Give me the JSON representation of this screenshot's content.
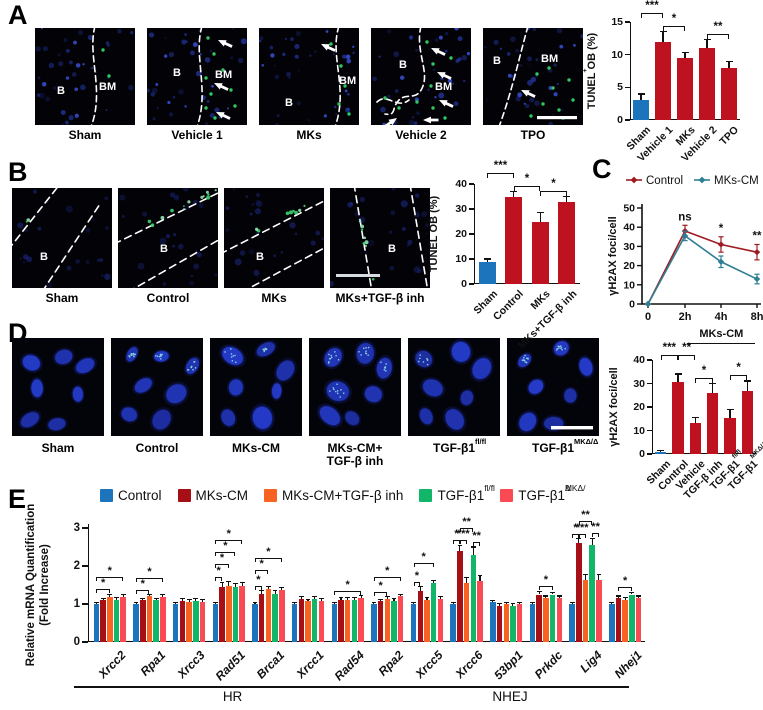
{
  "panels": {
    "A": {
      "letter": "A",
      "images": [
        {
          "label": "Sham",
          "bone_label": "B",
          "marrow_label": "BM"
        },
        {
          "label": "Vehicle 1",
          "bone_label": "B",
          "marrow_label": "BM"
        },
        {
          "label": "MKs",
          "bone_label": "B",
          "marrow_label": "BM"
        },
        {
          "label": "Vehicle 2",
          "bone_label": "B",
          "marrow_label": "BM"
        },
        {
          "label": "TPO",
          "bone_label": "B",
          "marrow_label": "BM"
        }
      ]
    },
    "B": {
      "letter": "B",
      "images": [
        {
          "label": "Sham",
          "bone_label": "B"
        },
        {
          "label": "Control",
          "bone_label": "B"
        },
        {
          "label": "MKs",
          "bone_label": "B"
        },
        {
          "label": "MKs+TGF-β inh",
          "bone_label": "B"
        }
      ]
    },
    "C": {
      "letter": "C"
    },
    "D": {
      "letter": "D",
      "images": [
        {
          "label": "Sham"
        },
        {
          "label": "Control"
        },
        {
          "label": "MKs-CM"
        },
        {
          "label": "MKs-CM+\nTGF-β inh"
        },
        {
          "label": "TGF-β1^{fl/fl}"
        },
        {
          "label": "TGF-β1^{MKΔ/Δ}"
        }
      ]
    },
    "E": {
      "letter": "E"
    }
  },
  "colors": {
    "blue": "#1C75BC",
    "bar_red": "#BE1220",
    "dark_red": "#A50F15",
    "orange": "#F96321",
    "green": "#12B668",
    "pink_red": "#FA4B55",
    "control_line": "#9E1B23",
    "mkscm_line": "#2E7F93"
  },
  "chart_data": [
    {
      "id": "A",
      "type": "bar",
      "ylabel": "TUNEL^{+} OB (%)",
      "ylim": [
        0,
        15
      ],
      "yticks": [
        0,
        5,
        10,
        15
      ],
      "categories": [
        "Sham",
        "Vehicle 1",
        "MKs",
        "Vehicle 2",
        "TPO"
      ],
      "values": [
        3,
        12,
        9.5,
        11,
        8
      ],
      "errors": [
        1,
        1.5,
        0.8,
        1.3,
        1
      ],
      "bar_colors": [
        "#1C75BC",
        "#BE1220",
        "#BE1220",
        "#BE1220",
        "#BE1220"
      ],
      "sig": [
        [
          "***",
          0,
          1,
          2
        ],
        [
          "*",
          1,
          2,
          1
        ],
        [
          "**",
          3,
          4,
          1
        ]
      ]
    },
    {
      "id": "B",
      "type": "bar",
      "ylabel": "TUNEL^{+} OB (%)",
      "ylim": [
        0,
        40
      ],
      "yticks": [
        0,
        10,
        20,
        30,
        40
      ],
      "categories": [
        "Sham",
        "Control",
        "MKs",
        "MKs+TGF-β inh"
      ],
      "values": [
        9,
        35,
        25,
        33
      ],
      "errors": [
        1,
        2,
        3.5,
        2
      ],
      "bar_colors": [
        "#1C75BC",
        "#BE1220",
        "#BE1220",
        "#BE1220"
      ],
      "sig": [
        [
          "***",
          0,
          1,
          2
        ],
        [
          "*",
          1,
          2,
          1
        ],
        [
          "*",
          2,
          3,
          1
        ]
      ]
    },
    {
      "id": "C",
      "type": "line",
      "ylabel": "γH2AX foci/cell",
      "ylim": [
        0,
        50
      ],
      "yticks": [
        0,
        10,
        20,
        30,
        40,
        50
      ],
      "x": [
        "0",
        "2h",
        "4h",
        "8h"
      ],
      "series": [
        {
          "name": "Control",
          "color": "#9E1B23",
          "values": [
            0,
            38,
            31,
            27
          ],
          "errors": [
            0,
            3,
            4,
            4
          ]
        },
        {
          "name": "MKs-CM",
          "color": "#2E7F93",
          "values": [
            0,
            35.5,
            22,
            13
          ],
          "errors": [
            0,
            2.5,
            3,
            2.5
          ]
        }
      ],
      "annotations": [
        {
          "x": 1,
          "label": "ns"
        },
        {
          "x": 2,
          "label": "*"
        },
        {
          "x": 3,
          "label": "**"
        }
      ],
      "legend_position": "top"
    },
    {
      "id": "D",
      "type": "bar",
      "ylabel": "γH2AX foci/cell",
      "ylim": [
        0,
        40
      ],
      "yticks": [
        0,
        10,
        20,
        30,
        40
      ],
      "categories": [
        "Sham",
        "Control",
        "Vehicle",
        "TGF-β inh",
        "TGF-β1^{fl/fl}",
        "TGF-β1^{MKΔ/Δ}"
      ],
      "values": [
        1,
        30.5,
        13,
        26,
        15.5,
        27
      ],
      "errors": [
        0.4,
        3.5,
        2.5,
        4,
        3.5,
        4
      ],
      "bar_colors": [
        "#1C75BC",
        "#BE1220",
        "#BE1220",
        "#BE1220",
        "#BE1220",
        "#BE1220"
      ],
      "header": {
        "label": "MKs-CM",
        "from": 2,
        "to": 5
      },
      "sig": [
        [
          "***",
          0,
          1,
          2
        ],
        [
          "**",
          1,
          2,
          2
        ],
        [
          "*",
          2,
          3,
          1
        ],
        [
          "*",
          4,
          5,
          1
        ]
      ]
    },
    {
      "id": "E",
      "type": "grouped-bar",
      "ylabel": "Relative mRNA Quantification\n(Fold Increase)",
      "ylim": [
        0,
        3
      ],
      "yticks": [
        0,
        1,
        2,
        3
      ],
      "series_names": [
        "Control",
        "MKs-CM",
        "MKs-CM+TGF-β inh",
        "TGF-β1^{fl/fl}",
        "TGF-β1^{MKΔ/Δ}"
      ],
      "series_colors": [
        "#1C75BC",
        "#A50F15",
        "#F96321",
        "#12B668",
        "#FA4B55"
      ],
      "group_sections": [
        {
          "label": "HR",
          "from": 0,
          "to": 7
        },
        {
          "label": "NHEJ",
          "from": 8,
          "to": 13
        }
      ],
      "groups": [
        {
          "gene": "Xrcc2",
          "values": [
            1.0,
            1.1,
            1.18,
            1.1,
            1.18
          ],
          "errors": [
            0.03,
            0.05,
            0.08,
            0.06,
            0.07
          ],
          "sig": [
            [
              "*",
              0,
              2,
              1
            ],
            [
              "*",
              0,
              4,
              2
            ]
          ]
        },
        {
          "gene": "Rpa1",
          "values": [
            1.0,
            1.1,
            1.2,
            1.11,
            1.19
          ],
          "errors": [
            0.04,
            0.04,
            0.05,
            0.04,
            0.05
          ],
          "sig": [
            [
              "*",
              0,
              2,
              1
            ],
            [
              "*",
              0,
              4,
              2
            ]
          ]
        },
        {
          "gene": "Xrcc3",
          "values": [
            1.0,
            1.08,
            1.05,
            1.08,
            1.06
          ],
          "errors": [
            0.04,
            0.07,
            0.06,
            0.07,
            0.06
          ],
          "sig": []
        },
        {
          "gene": "Rad51",
          "values": [
            1.0,
            1.45,
            1.48,
            1.45,
            1.47
          ],
          "errors": [
            0.05,
            0.12,
            0.12,
            0.1,
            0.1
          ],
          "sig": [
            [
              "*",
              0,
              1,
              1
            ],
            [
              "*",
              0,
              2,
              2
            ],
            [
              "*",
              0,
              3,
              3
            ],
            [
              "*",
              0,
              4,
              4
            ]
          ]
        },
        {
          "gene": "Brca1",
          "values": [
            1.0,
            1.27,
            1.4,
            1.27,
            1.38
          ],
          "errors": [
            0.05,
            0.08,
            0.05,
            0.08,
            0.05
          ],
          "sig": [
            [
              "*",
              0,
              1,
              1
            ],
            [
              "*",
              0,
              2,
              2
            ],
            [
              "*",
              0,
              4,
              3
            ]
          ]
        },
        {
          "gene": "Xrcc1",
          "values": [
            1.0,
            1.12,
            1.07,
            1.12,
            1.08
          ],
          "errors": [
            0.04,
            0.08,
            0.06,
            0.07,
            0.06
          ],
          "sig": []
        },
        {
          "gene": "Rad54",
          "values": [
            1.0,
            1.1,
            1.1,
            1.1,
            1.16
          ],
          "errors": [
            0.04,
            0.06,
            0.06,
            0.06,
            0.06
          ],
          "sig": [
            [
              "*",
              0,
              4,
              1
            ]
          ]
        },
        {
          "gene": "Rpa2",
          "values": [
            1.0,
            1.08,
            1.14,
            1.09,
            1.2
          ],
          "errors": [
            0.04,
            0.05,
            0.05,
            0.05,
            0.06
          ],
          "sig": [
            [
              "*",
              0,
              2,
              1
            ],
            [
              "*",
              0,
              4,
              2
            ]
          ]
        },
        {
          "gene": "Xrcc5",
          "values": [
            1.0,
            1.35,
            1.1,
            1.55,
            1.12
          ],
          "errors": [
            0.04,
            0.1,
            0.07,
            0.08,
            0.07
          ],
          "sig": [
            [
              "*",
              0,
              1,
              1
            ],
            [
              "*",
              0,
              3,
              2
            ]
          ]
        },
        {
          "gene": "Xrcc6",
          "values": [
            1.0,
            2.4,
            1.55,
            2.3,
            1.6
          ],
          "errors": [
            0.05,
            0.15,
            0.15,
            0.2,
            0.15
          ],
          "sig": [
            [
              "*",
              0,
              1,
              1
            ],
            [
              "***",
              1,
              2,
              1
            ],
            [
              "**",
              3,
              4,
              1
            ],
            [
              "**",
              1,
              3,
              2
            ]
          ]
        },
        {
          "gene": "53bp1",
          "values": [
            1.05,
            0.95,
            1.0,
            0.95,
            1.0
          ],
          "errors": [
            0.05,
            0.06,
            0.05,
            0.06,
            0.05
          ],
          "sig": []
        },
        {
          "gene": "Prkdc",
          "values": [
            1.0,
            1.25,
            1.15,
            1.25,
            1.15
          ],
          "errors": [
            0.04,
            0.08,
            0.06,
            0.06,
            0.06
          ],
          "sig": [
            [
              "*",
              1,
              3,
              1
            ]
          ]
        },
        {
          "gene": "Lig4",
          "values": [
            1.0,
            2.6,
            1.62,
            2.55,
            1.62
          ],
          "errors": [
            0.05,
            0.12,
            0.15,
            0.18,
            0.15
          ],
          "sig": [
            [
              "*",
              0,
              1,
              1
            ],
            [
              "***",
              1,
              2,
              1
            ],
            [
              "**",
              3,
              4,
              1
            ],
            [
              "**",
              1,
              3,
              2
            ]
          ]
        },
        {
          "gene": "Nhej1",
          "values": [
            1.0,
            1.15,
            1.1,
            1.25,
            1.15
          ],
          "errors": [
            0.04,
            0.06,
            0.06,
            0.06,
            0.06
          ],
          "sig": [
            [
              "*",
              1,
              3,
              1
            ]
          ]
        }
      ]
    }
  ]
}
